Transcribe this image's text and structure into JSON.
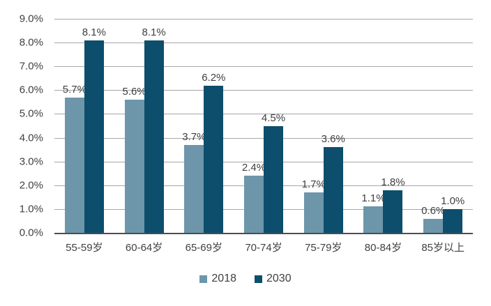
{
  "chart_data": {
    "type": "bar",
    "title": "",
    "categories": [
      "55-59岁",
      "60-64岁",
      "65-69岁",
      "70-74岁",
      "75-79岁",
      "80-84岁",
      "85岁以上"
    ],
    "series": [
      {
        "name": "2018",
        "color": "#6d96aa",
        "values": [
          5.7,
          5.6,
          3.7,
          2.4,
          1.7,
          1.1,
          0.6
        ]
      },
      {
        "name": "2030",
        "color": "#0d4e6c",
        "values": [
          8.1,
          8.1,
          6.2,
          4.5,
          3.6,
          1.8,
          1.0
        ]
      }
    ],
    "ylim": [
      0,
      9
    ],
    "ytick_step": 1,
    "ytick_labels": [
      "0.0%",
      "1.0%",
      "2.0%",
      "3.0%",
      "4.0%",
      "5.0%",
      "6.0%",
      "7.0%",
      "8.0%",
      "9.0%"
    ],
    "xlabel": "",
    "ylabel": "",
    "grid": true,
    "data_labels": true,
    "data_label_suffix": "%",
    "legend_position": "bottom"
  },
  "colors": {
    "background": "#ffffff",
    "gridline": "#a6a6a6",
    "axis_line": "#4d4d4d",
    "text": "#404040",
    "series_2018": "#6d96aa",
    "series_2030": "#0d4e6c"
  }
}
